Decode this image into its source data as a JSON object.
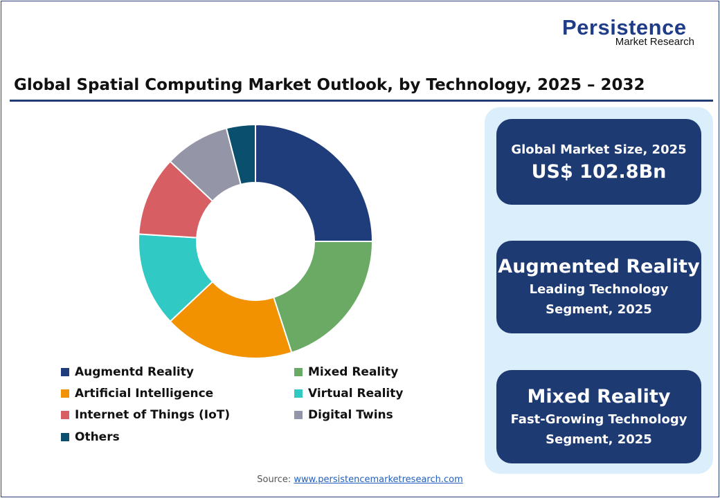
{
  "logo": {
    "main": "Persistence",
    "sub": "Market Research"
  },
  "title": "Global Spatial Computing Market Outlook, by Technology, 2025 – 2032",
  "chart_data": {
    "type": "pie",
    "donut": true,
    "categories": [
      "Augmentd Reality",
      "Mixed Reality",
      "Artificial Intelligence",
      "Virtual Reality",
      "Internet of Things (IoT)",
      "Digital Twins",
      "Others"
    ],
    "values": [
      25,
      20,
      18,
      13,
      11,
      9,
      4
    ],
    "unit": "%",
    "colors": [
      "#1f3d7a",
      "#6aaa64",
      "#f39200",
      "#30c9c4",
      "#d75f63",
      "#9595a8",
      "#0a4f6e"
    ],
    "legend_placement": "bottom"
  },
  "cards": [
    {
      "line1": "Global Market Size, 2025",
      "line2": "US$ 102.8Bn"
    },
    {
      "line1": "Augmented Reality",
      "line2": "Leading Technology",
      "line3": "Segment, 2025"
    },
    {
      "line1": "Mixed Reality",
      "line2": "Fast-Growing Technology",
      "line3": "Segment, 2025"
    }
  ],
  "source": {
    "label": "Source:",
    "link": "www.persistencemarketresearch.com"
  }
}
